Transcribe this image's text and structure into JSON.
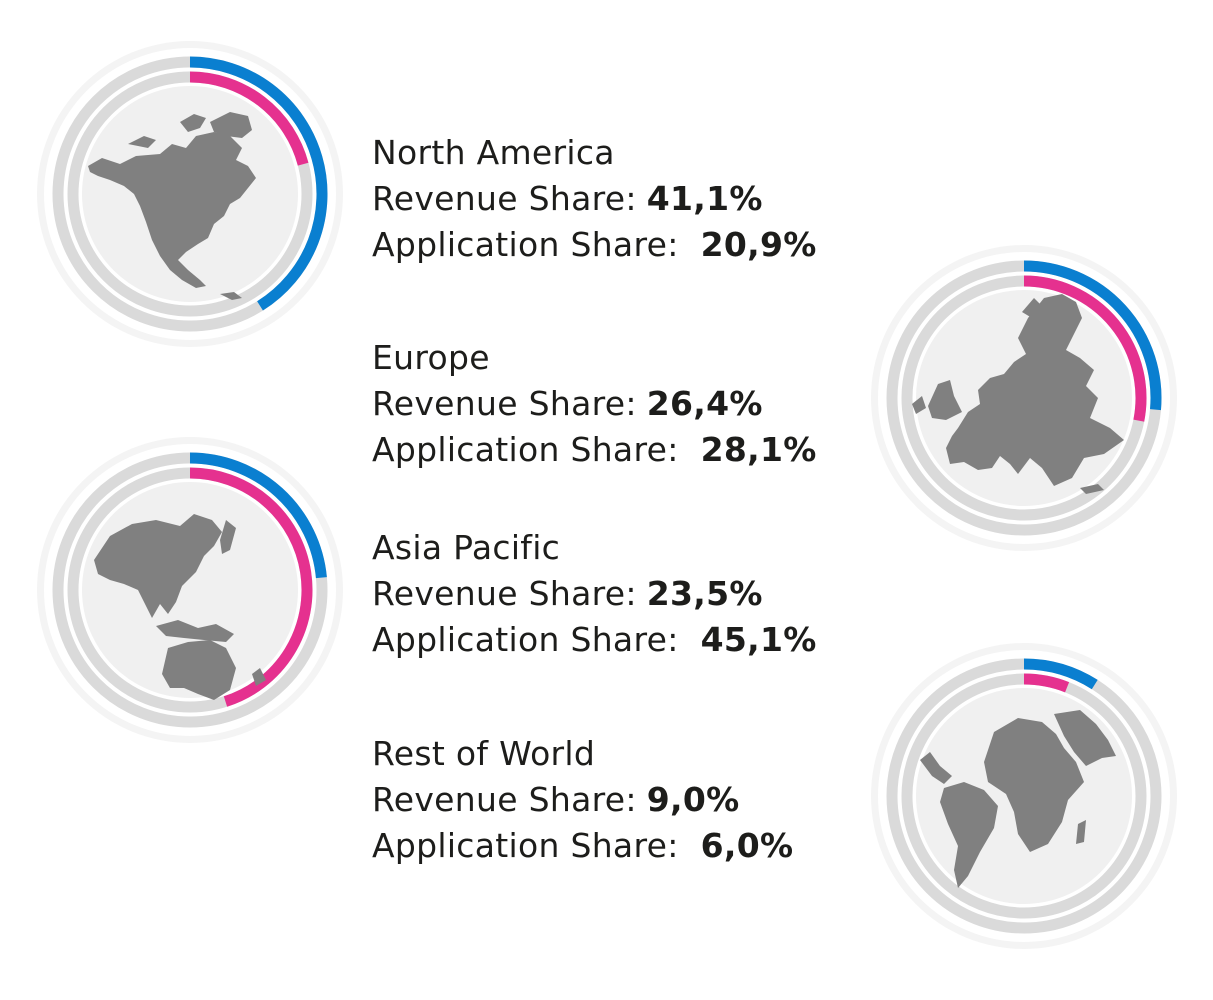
{
  "colors": {
    "revenue_share": "#0a7fd0",
    "application_share": "#e5318f",
    "track": "#dadada",
    "map": "#808080",
    "disc": "#f0f0f0"
  },
  "labels": {
    "revenue": "Revenue Share:",
    "application": "Application Share:"
  },
  "chart_data": {
    "type": "donut",
    "series": [
      {
        "name": "Revenue Share",
        "color": "#0a7fd0"
      },
      {
        "name": "Application Share",
        "color": "#e5318f"
      }
    ],
    "categories": [
      "North America",
      "Europe",
      "Asia Pacific",
      "Rest of World"
    ],
    "regions": [
      {
        "name": "North America",
        "icon": "north-america-map-icon",
        "revenue_share": 41.1,
        "revenue_label": "41,1%",
        "application_share": 20.9,
        "application_label": "20,9%"
      },
      {
        "name": "Europe",
        "icon": "europe-map-icon",
        "revenue_share": 26.4,
        "revenue_label": "26,4%",
        "application_share": 28.1,
        "application_label": "28,1%"
      },
      {
        "name": "Asia Pacific",
        "icon": "asia-pacific-map-icon",
        "revenue_share": 23.5,
        "revenue_label": "23,5%",
        "application_share": 45.1,
        "application_label": "45,1%"
      },
      {
        "name": "Rest of World",
        "icon": "rest-of-world-map-icon",
        "revenue_share": 9.0,
        "revenue_label": "9,0%",
        "application_share": 6.0,
        "application_label": "6,0%"
      }
    ]
  }
}
